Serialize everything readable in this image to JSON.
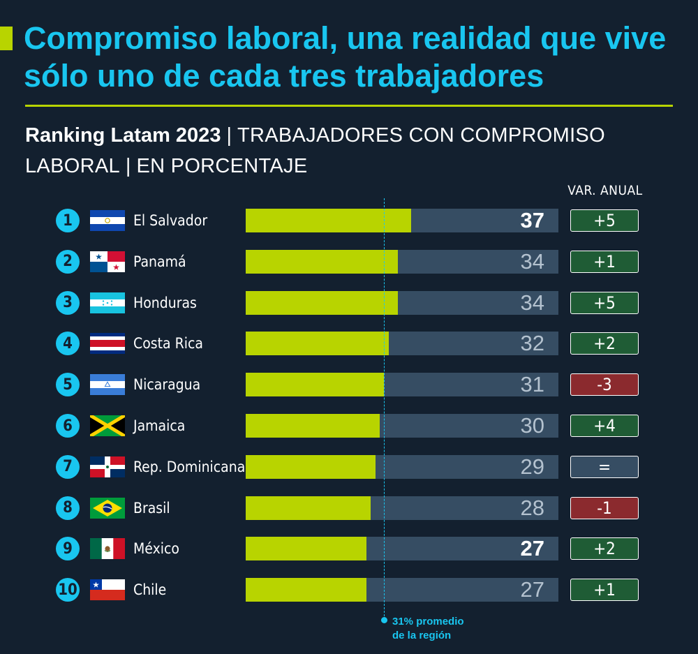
{
  "title": "Compromiso laboral, una realidad que vive sólo uno de cada tres trabajadores",
  "subtitle": {
    "strong": "Ranking Latam 2023",
    "part1": "TRABAJADORES CON COMPROMISO LABORAL",
    "part2": "EN PORCENTAJE"
  },
  "var_header": "VAR. ANUAL",
  "average_label_line1": "31% promedio",
  "average_label_line2": "de la región",
  "colors": {
    "background": "#13202f",
    "accent_green": "#b8d400",
    "accent_cyan": "#19c6f0",
    "track": "#364d63",
    "var_positive": "#1f5c35",
    "var_negative": "#8b2a2e",
    "var_neutral": "#364d63"
  },
  "chart_data": {
    "type": "bar",
    "orientation": "horizontal",
    "xlim": [
      0,
      70
    ],
    "average": 31,
    "categories": [
      "El Salvador",
      "Panamá",
      "Honduras",
      "Costa Rica",
      "Nicaragua",
      "Jamaica",
      "Rep. Dominicana",
      "Brasil",
      "México",
      "Chile"
    ],
    "rows": [
      {
        "rank": "1",
        "country": "El Salvador",
        "flag": "el-salvador",
        "value": 37,
        "value_label": "37",
        "bold": true,
        "var": "+5",
        "var_kind": "positive"
      },
      {
        "rank": "2",
        "country": "Panamá",
        "flag": "panama",
        "value": 34,
        "value_label": "34",
        "bold": false,
        "var": "+1",
        "var_kind": "positive"
      },
      {
        "rank": "3",
        "country": "Honduras",
        "flag": "honduras",
        "value": 34,
        "value_label": "34",
        "bold": false,
        "var": "+5",
        "var_kind": "positive"
      },
      {
        "rank": "4",
        "country": "Costa Rica",
        "flag": "costa-rica",
        "value": 32,
        "value_label": "32",
        "bold": false,
        "var": "+2",
        "var_kind": "positive"
      },
      {
        "rank": "5",
        "country": "Nicaragua",
        "flag": "nicaragua",
        "value": 31,
        "value_label": "31",
        "bold": false,
        "var": "-3",
        "var_kind": "negative"
      },
      {
        "rank": "6",
        "country": "Jamaica",
        "flag": "jamaica",
        "value": 30,
        "value_label": "30",
        "bold": false,
        "var": "+4",
        "var_kind": "positive"
      },
      {
        "rank": "7",
        "country": "Rep. Dominicana",
        "flag": "dominican-republic",
        "value": 29,
        "value_label": "29",
        "bold": false,
        "var": "=",
        "var_kind": "neutral"
      },
      {
        "rank": "8",
        "country": "Brasil",
        "flag": "brazil",
        "value": 28,
        "value_label": "28",
        "bold": false,
        "var": "-1",
        "var_kind": "negative"
      },
      {
        "rank": "9",
        "country": "México",
        "flag": "mexico",
        "value": 27,
        "value_label": "27",
        "bold": true,
        "var": "+2",
        "var_kind": "positive"
      },
      {
        "rank": "10",
        "country": "Chile",
        "flag": "chile",
        "value": 27,
        "value_label": "27",
        "bold": false,
        "var": "+1",
        "var_kind": "positive"
      }
    ]
  }
}
